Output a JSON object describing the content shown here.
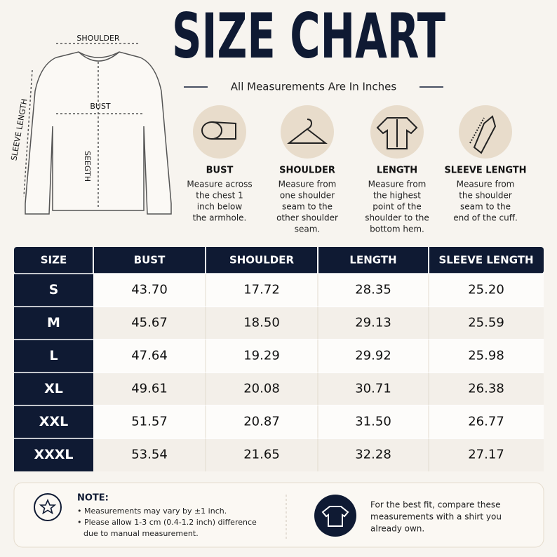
{
  "header": {
    "title": "SIZE CHART",
    "subtitle": "All Measurements Are In Inches"
  },
  "diagram": {
    "shoulder": "SHOULDER",
    "bust": "BUST",
    "length": "SEEGTH",
    "sleeve": "SLEEVE LENGTH"
  },
  "icons": [
    {
      "title": "BUST",
      "desc": [
        "Measure across",
        "the chest 1",
        "inch below",
        "the armhole."
      ]
    },
    {
      "title": "SHOULDER",
      "desc": [
        "Measure from",
        "one shoulder",
        "seam to the",
        "other shoulder",
        "seam."
      ]
    },
    {
      "title": "LENGTH",
      "desc": [
        "Measure from",
        "the highest",
        "point of the",
        "shoulder to the",
        "bottom hem."
      ]
    },
    {
      "title": "SLEEVE LENGTH",
      "desc": [
        "Measure from",
        "the shoulder",
        "seam to the",
        "end of the cuff."
      ]
    }
  ],
  "table": {
    "columns": [
      "SIZE",
      "BUST",
      "SHOULDER",
      "LENGTH",
      "SLEEVE LENGTH"
    ],
    "rows": [
      [
        "S",
        "43.70",
        "17.72",
        "28.35",
        "25.20"
      ],
      [
        "M",
        "45.67",
        "18.50",
        "29.13",
        "25.59"
      ],
      [
        "L",
        "47.64",
        "19.29",
        "29.92",
        "25.98"
      ],
      [
        "XL",
        "49.61",
        "20.08",
        "30.71",
        "26.38"
      ],
      [
        "XXL",
        "51.57",
        "20.87",
        "31.50",
        "26.77"
      ],
      [
        "XXXL",
        "53.54",
        "21.65",
        "32.28",
        "27.17"
      ]
    ]
  },
  "note": {
    "title": "NOTE:",
    "items": [
      "• Measurements may vary by ±1 inch.",
      "• Please allow 1-3 cm (0.4-1.2 inch) difference",
      "due to manual measurement."
    ],
    "tip": [
      "For the best fit, compare these",
      "measurements with a shirt you",
      "already own."
    ]
  }
}
